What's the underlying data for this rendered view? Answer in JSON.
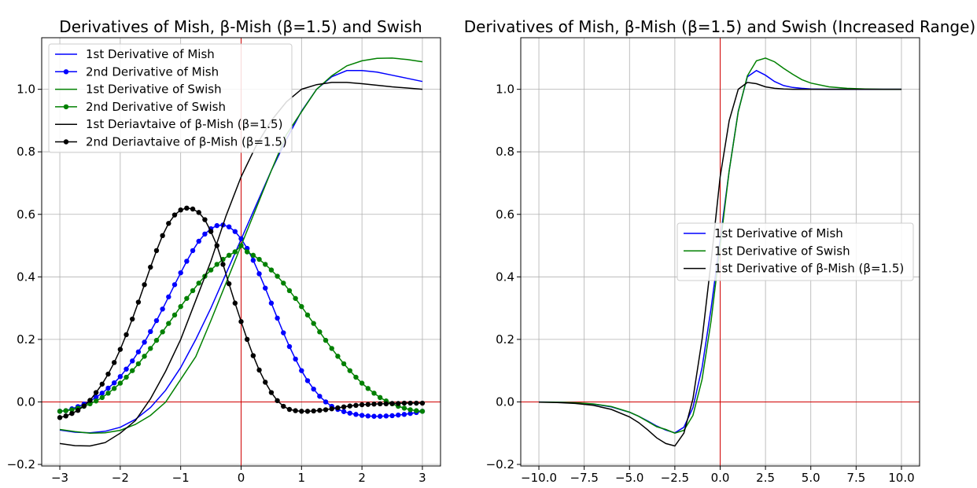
{
  "chart_data": [
    {
      "type": "line",
      "title": "Derivatives of Mish, β-Mish (β=1.5) and Swish",
      "xlabel": "",
      "ylabel": "",
      "xlim": [
        -3.3,
        3.3
      ],
      "ylim": [
        -0.205,
        1.165
      ],
      "xticks": [
        -3,
        -2,
        -1,
        0,
        1,
        2,
        3
      ],
      "xtick_labels": [
        "−3",
        "−2",
        "−1",
        "0",
        "1",
        "2",
        "3"
      ],
      "yticks": [
        -0.2,
        0.0,
        0.2,
        0.4,
        0.6,
        0.8,
        1.0
      ],
      "ytick_labels": [
        "−0.2",
        "0.0",
        "0.2",
        "0.4",
        "0.6",
        "0.8",
        "1.0"
      ],
      "grid": true,
      "zero_lines_color": "#d00000",
      "legend_position": "top-left",
      "series": [
        {
          "name": "1st Derivative of Mish",
          "color": "#0000ff",
          "markers": false,
          "x": [
            -3,
            -2.75,
            -2.5,
            -2.25,
            -2,
            -1.75,
            -1.5,
            -1.25,
            -1,
            -0.75,
            -0.5,
            -0.25,
            0,
            0.25,
            0.5,
            0.75,
            1,
            1.25,
            1.5,
            1.75,
            2,
            2.25,
            2.5,
            2.75,
            3
          ],
          "y": [
            -0.09,
            -0.097,
            -0.099,
            -0.094,
            -0.081,
            -0.056,
            -0.018,
            0.037,
            0.11,
            0.2,
            0.3,
            0.41,
            0.52,
            0.63,
            0.74,
            0.84,
            0.93,
            1.0,
            1.04,
            1.06,
            1.06,
            1.055,
            1.045,
            1.035,
            1.025
          ]
        },
        {
          "name": "2nd Derivative of Mish",
          "color": "#0000ff",
          "markers": true,
          "x": [
            -3,
            -2.9,
            -2.8,
            -2.7,
            -2.6,
            -2.5,
            -2.4,
            -2.3,
            -2.2,
            -2.1,
            -2,
            -1.9,
            -1.8,
            -1.7,
            -1.6,
            -1.5,
            -1.4,
            -1.3,
            -1.2,
            -1.1,
            -1,
            -0.9,
            -0.8,
            -0.7,
            -0.6,
            -0.5,
            -0.4,
            -0.3,
            -0.2,
            -0.1,
            0,
            0.1,
            0.2,
            0.3,
            0.4,
            0.5,
            0.6,
            0.7,
            0.8,
            0.9,
            1,
            1.1,
            1.2,
            1.3,
            1.4,
            1.5,
            1.6,
            1.7,
            1.8,
            1.9,
            2,
            2.1,
            2.2,
            2.3,
            2.4,
            2.5,
            2.6,
            2.7,
            2.8,
            2.9,
            3
          ],
          "y": [
            -0.03,
            -0.028,
            -0.022,
            -0.015,
            -0.007,
            0.003,
            0.015,
            0.028,
            0.044,
            0.061,
            0.081,
            0.105,
            0.131,
            0.16,
            0.191,
            0.225,
            0.26,
            0.297,
            0.336,
            0.375,
            0.413,
            0.45,
            0.484,
            0.514,
            0.537,
            0.554,
            0.564,
            0.566,
            0.56,
            0.545,
            0.522,
            0.491,
            0.453,
            0.41,
            0.364,
            0.316,
            0.268,
            0.221,
            0.177,
            0.137,
            0.1,
            0.068,
            0.041,
            0.018,
            0.0,
            -0.014,
            -0.024,
            -0.031,
            -0.036,
            -0.04,
            -0.043,
            -0.045,
            -0.046,
            -0.046,
            -0.045,
            -0.044,
            -0.042,
            -0.04,
            -0.037,
            -0.034,
            -0.03
          ]
        },
        {
          "name": "1st Derivative of Swish",
          "color": "#008000",
          "markers": false,
          "x": [
            -3,
            -2.75,
            -2.5,
            -2.25,
            -2,
            -1.75,
            -1.5,
            -1.25,
            -1,
            -0.75,
            -0.5,
            -0.25,
            0,
            0.25,
            0.5,
            0.75,
            1,
            1.25,
            1.5,
            1.75,
            2,
            2.25,
            2.5,
            2.75,
            3
          ],
          "y": [
            -0.088,
            -0.095,
            -0.1,
            -0.099,
            -0.091,
            -0.072,
            -0.043,
            -0.001,
            0.072,
            0.145,
            0.26,
            0.38,
            0.5,
            0.62,
            0.74,
            0.855,
            0.928,
            1.0,
            1.043,
            1.075,
            1.091,
            1.099,
            1.1,
            1.095,
            1.088
          ]
        },
        {
          "name": "2nd Derivative of Swish",
          "color": "#008000",
          "markers": true,
          "x": [
            -3,
            -2.9,
            -2.8,
            -2.7,
            -2.6,
            -2.5,
            -2.4,
            -2.3,
            -2.2,
            -2.1,
            -2,
            -1.9,
            -1.8,
            -1.7,
            -1.6,
            -1.5,
            -1.4,
            -1.3,
            -1.2,
            -1.1,
            -1,
            -0.9,
            -0.8,
            -0.7,
            -0.6,
            -0.5,
            -0.4,
            -0.3,
            -0.2,
            -0.1,
            0,
            0.1,
            0.2,
            0.3,
            0.4,
            0.5,
            0.6,
            0.7,
            0.8,
            0.9,
            1,
            1.1,
            1.2,
            1.3,
            1.4,
            1.5,
            1.6,
            1.7,
            1.8,
            1.9,
            2,
            2.1,
            2.2,
            2.3,
            2.4,
            2.5,
            2.6,
            2.7,
            2.8,
            2.9,
            3
          ],
          "y": [
            -0.03,
            -0.028,
            -0.025,
            -0.02,
            -0.014,
            -0.006,
            0.003,
            0.014,
            0.028,
            0.043,
            0.06,
            0.079,
            0.1,
            0.122,
            0.146,
            0.171,
            0.197,
            0.224,
            0.251,
            0.278,
            0.305,
            0.331,
            0.356,
            0.38,
            0.402,
            0.422,
            0.44,
            0.456,
            0.469,
            0.48,
            0.5,
            0.48,
            0.469,
            0.456,
            0.44,
            0.422,
            0.402,
            0.38,
            0.356,
            0.331,
            0.305,
            0.278,
            0.251,
            0.224,
            0.197,
            0.171,
            0.146,
            0.122,
            0.1,
            0.079,
            0.06,
            0.043,
            0.028,
            0.014,
            0.003,
            -0.006,
            -0.014,
            -0.02,
            -0.025,
            -0.028,
            -0.03
          ]
        },
        {
          "name": "1st Deriavtaive of β-Mish (β=1.5)",
          "color": "#000000",
          "markers": false,
          "x": [
            -3,
            -2.75,
            -2.5,
            -2.25,
            -2,
            -1.75,
            -1.5,
            -1.25,
            -1,
            -0.75,
            -0.5,
            -0.25,
            0,
            0.25,
            0.5,
            0.75,
            1,
            1.25,
            1.5,
            1.75,
            2,
            2.25,
            2.5,
            2.75,
            3
          ],
          "y": [
            -0.133,
            -0.14,
            -0.141,
            -0.13,
            -0.1,
            -0.06,
            0.01,
            0.098,
            0.2,
            0.325,
            0.45,
            0.595,
            0.72,
            0.82,
            0.9,
            0.96,
            1.0,
            1.015,
            1.022,
            1.022,
            1.018,
            1.013,
            1.008,
            1.004,
            1.0
          ]
        },
        {
          "name": "2nd Deriavtaive of β-Mish (β=1.5)",
          "color": "#000000",
          "markers": true,
          "x": [
            -3,
            -2.9,
            -2.8,
            -2.7,
            -2.6,
            -2.5,
            -2.4,
            -2.3,
            -2.2,
            -2.1,
            -2,
            -1.9,
            -1.8,
            -1.7,
            -1.6,
            -1.5,
            -1.4,
            -1.3,
            -1.2,
            -1.1,
            -1,
            -0.9,
            -0.8,
            -0.7,
            -0.6,
            -0.5,
            -0.4,
            -0.3,
            -0.2,
            -0.1,
            0,
            0.1,
            0.2,
            0.3,
            0.4,
            0.5,
            0.6,
            0.7,
            0.8,
            0.9,
            1,
            1.1,
            1.2,
            1.3,
            1.4,
            1.5,
            1.6,
            1.7,
            1.8,
            1.9,
            2,
            2.1,
            2.2,
            2.3,
            2.4,
            2.5,
            2.6,
            2.7,
            2.8,
            2.9,
            3
          ],
          "y": [
            -0.05,
            -0.045,
            -0.037,
            -0.027,
            -0.013,
            0.005,
            0.03,
            0.057,
            0.089,
            0.126,
            0.168,
            0.215,
            0.265,
            0.319,
            0.375,
            0.431,
            0.484,
            0.532,
            0.571,
            0.598,
            0.614,
            0.62,
            0.617,
            0.606,
            0.583,
            0.545,
            0.5,
            0.44,
            0.378,
            0.316,
            0.257,
            0.2,
            0.148,
            0.102,
            0.063,
            0.03,
            0.004,
            -0.014,
            -0.024,
            -0.028,
            -0.03,
            -0.03,
            -0.029,
            -0.027,
            -0.025,
            -0.022,
            -0.019,
            -0.016,
            -0.013,
            -0.011,
            -0.009,
            -0.008,
            -0.007,
            -0.006,
            -0.006,
            -0.005,
            -0.005,
            -0.004,
            -0.004,
            -0.004,
            -0.004
          ]
        }
      ]
    },
    {
      "type": "line",
      "title": "Derivatives of Mish, β-Mish (β=1.5) and Swish (Increased Range)",
      "xlabel": "",
      "ylabel": "",
      "xlim": [
        -11.0,
        11.0
      ],
      "ylim": [
        -0.205,
        1.165
      ],
      "xticks": [
        -10,
        -7.5,
        -5,
        -2.5,
        0,
        2.5,
        5,
        7.5,
        10
      ],
      "xtick_labels": [
        "−10.0",
        "−7.5",
        "−5.0",
        "−2.5",
        "0.0",
        "2.5",
        "5.0",
        "7.5",
        "10.0"
      ],
      "yticks": [
        -0.2,
        0.0,
        0.2,
        0.4,
        0.6,
        0.8,
        1.0
      ],
      "ytick_labels": [
        "−0.2",
        "0.0",
        "0.2",
        "0.4",
        "0.6",
        "0.8",
        "1.0"
      ],
      "grid": true,
      "zero_lines_color": "#d00000",
      "legend_position": "center-right",
      "series": [
        {
          "name": "1st Derivative of Mish",
          "color": "#0000ff",
          "markers": false,
          "x": [
            -10,
            -9,
            -8,
            -7,
            -6,
            -5,
            -4.5,
            -4,
            -3.5,
            -3,
            -2.5,
            -2,
            -1.5,
            -1,
            -0.5,
            0,
            0.5,
            1,
            1.5,
            2,
            2.5,
            3,
            3.5,
            4,
            4.5,
            5,
            6,
            7,
            8,
            9,
            10
          ],
          "y": [
            -0.0005,
            -0.001,
            -0.003,
            -0.007,
            -0.016,
            -0.033,
            -0.046,
            -0.061,
            -0.077,
            -0.09,
            -0.099,
            -0.081,
            -0.018,
            0.11,
            0.3,
            0.52,
            0.74,
            0.93,
            1.04,
            1.06,
            1.045,
            1.025,
            1.012,
            1.006,
            1.003,
            1.001,
            1.0,
            1.0,
            1.0,
            1.0,
            1.0
          ]
        },
        {
          "name": "1st Derivative of Swish",
          "color": "#008000",
          "markers": false,
          "x": [
            -10,
            -9,
            -8,
            -7,
            -6,
            -5,
            -4.5,
            -4,
            -3.5,
            -3,
            -2.5,
            -2,
            -1.5,
            -1,
            -0.5,
            0,
            0.5,
            1,
            1.5,
            2,
            2.5,
            3,
            3.5,
            4,
            4.5,
            5,
            6,
            7,
            8,
            9,
            10
          ],
          "y": [
            -0.0004,
            -0.001,
            -0.0027,
            -0.0064,
            -0.0148,
            -0.0328,
            -0.046,
            -0.0625,
            -0.0793,
            -0.088,
            -0.1,
            -0.091,
            -0.043,
            0.072,
            0.26,
            0.5,
            0.74,
            0.928,
            1.043,
            1.091,
            1.1,
            1.088,
            1.067,
            1.048,
            1.031,
            1.02,
            1.008,
            1.003,
            1.001,
            1.0,
            1.0
          ]
        },
        {
          "name": "1st Derivative of  β-Mish (β=1.5)",
          "color": "#000000",
          "markers": false,
          "x": [
            -10,
            -9,
            -8,
            -7,
            -6,
            -5,
            -4.5,
            -4,
            -3.5,
            -3,
            -2.5,
            -2,
            -1.5,
            -1,
            -0.5,
            0,
            0.5,
            1,
            1.5,
            2,
            2.5,
            3,
            3.5,
            4,
            4.5,
            5,
            6,
            7,
            8,
            9,
            10
          ],
          "y": [
            -0.0007,
            -0.002,
            -0.005,
            -0.011,
            -0.024,
            -0.048,
            -0.066,
            -0.089,
            -0.115,
            -0.133,
            -0.141,
            -0.1,
            0.01,
            0.2,
            0.45,
            0.72,
            0.9,
            1.0,
            1.022,
            1.018,
            1.008,
            1.003,
            1.001,
            1.0,
            1.0,
            1.0,
            1.0,
            1.0,
            1.0,
            1.0,
            1.0
          ]
        }
      ]
    }
  ]
}
